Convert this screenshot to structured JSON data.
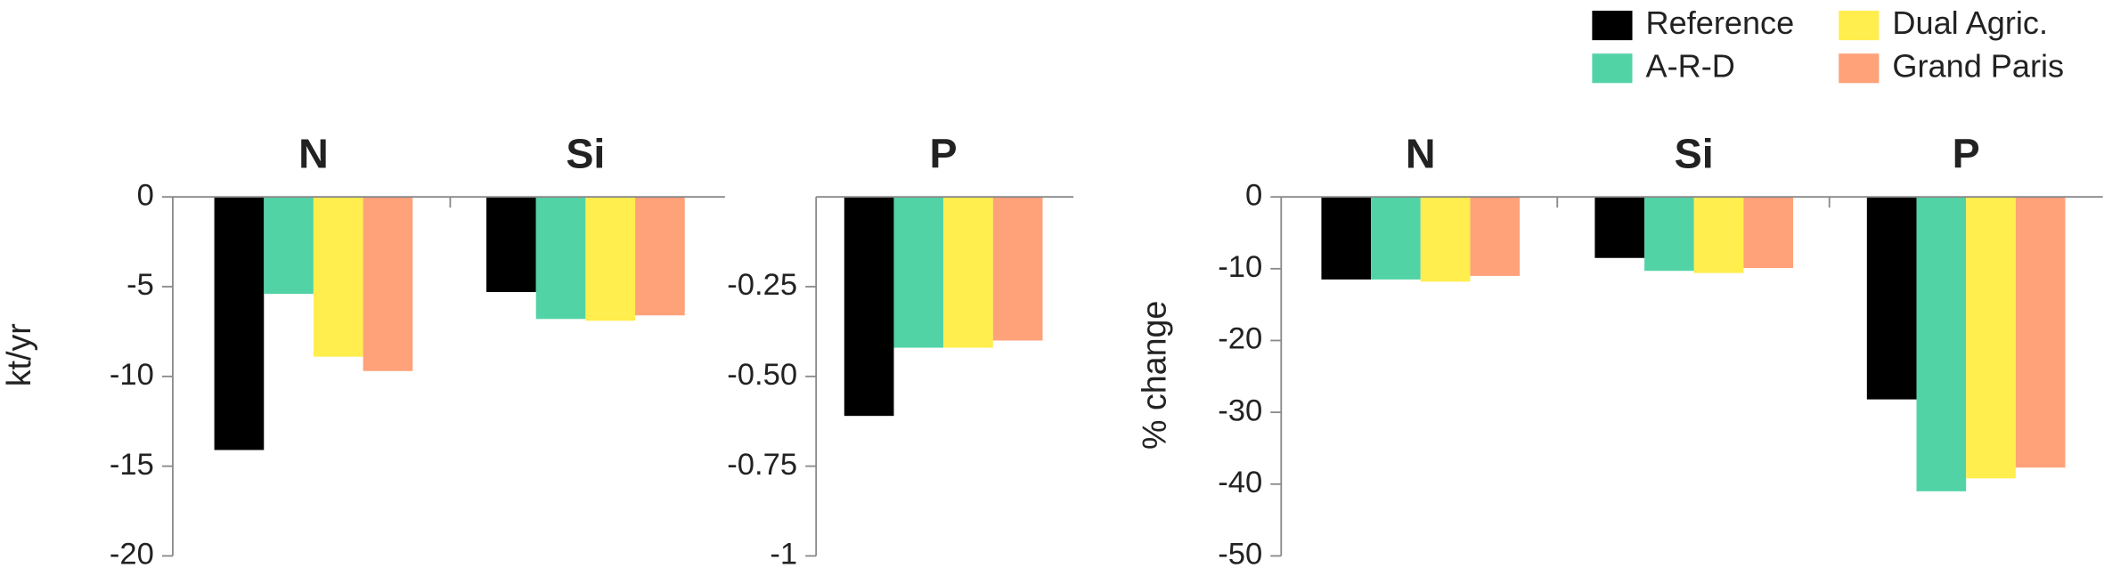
{
  "legend": {
    "entries": [
      {
        "name": "Reference",
        "color": "#000000"
      },
      {
        "name": "A-R-D",
        "color": "#52d3a6"
      },
      {
        "name": "Dual Agric.",
        "color": "#ffee4d"
      },
      {
        "name": "Grand Paris",
        "color": "#ffa27a"
      }
    ]
  },
  "chart_data": [
    {
      "type": "bar",
      "ylabel": "kt/yr",
      "categories": [
        "N",
        "Si"
      ],
      "ylim": [
        -20,
        0
      ],
      "yticks": [
        0,
        -5,
        -10,
        -15,
        -20
      ],
      "series": [
        {
          "values": [
            -14.1,
            -5.3
          ]
        },
        {
          "values": [
            -5.4,
            -6.8
          ]
        },
        {
          "values": [
            -8.9,
            -6.9
          ]
        },
        {
          "values": [
            -9.7,
            -6.6
          ]
        }
      ]
    },
    {
      "type": "bar",
      "categories": [
        "P"
      ],
      "ylim": [
        -1,
        0
      ],
      "yticks": [
        -0.25,
        {
          "value": -0.5,
          "label": "-0.50"
        },
        -0.75,
        -1
      ],
      "series": [
        {
          "values": [
            -0.61
          ]
        },
        {
          "values": [
            -0.42
          ]
        },
        {
          "values": [
            -0.42
          ]
        },
        {
          "values": [
            -0.4
          ]
        }
      ]
    },
    {
      "type": "bar",
      "ylabel": "% change",
      "categories": [
        "N",
        "Si",
        "P"
      ],
      "ylim": [
        -50,
        0
      ],
      "yticks": [
        0,
        -10,
        -20,
        -30,
        -40,
        -50
      ],
      "series": [
        {
          "values": [
            -11.5,
            -8.5,
            -28.2
          ]
        },
        {
          "values": [
            -11.5,
            -10.3,
            -41
          ]
        },
        {
          "values": [
            -11.8,
            -10.6,
            -39.2
          ]
        },
        {
          "values": [
            -11,
            -9.9,
            -37.7
          ]
        }
      ]
    }
  ]
}
